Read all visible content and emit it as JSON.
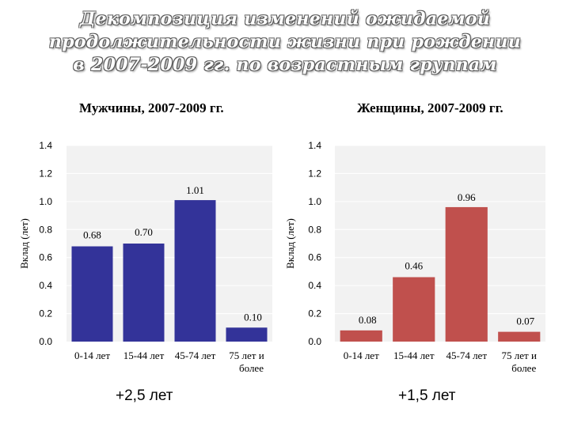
{
  "title": "Декомпозиция изменений ожидаемой продолжительности жизни при рождении в 2007-2009 гг. по возрастным группам",
  "colors": {
    "men": "#333399",
    "women": "#c0504d",
    "plot_bg": "#f2f2f2",
    "grid": "#ffffff"
  },
  "chart_data": [
    {
      "type": "bar",
      "title": "Мужчины, 2007-2009 гг.",
      "xlabel": "",
      "ylabel": "Вклад (лет)",
      "ylim": [
        0,
        1.4
      ],
      "yticks": [
        "0.0",
        "0.2",
        "0.4",
        "0.6",
        "0.8",
        "1.0",
        "1.2",
        "1.4"
      ],
      "categories": [
        "0-14 лет",
        "15-44 лет",
        "45-74 лет",
        "75 лет и более"
      ],
      "category_lines": [
        [
          "0-14 лет"
        ],
        [
          "15-44 лет"
        ],
        [
          "45-74 лет"
        ],
        [
          "75 лет и",
          "более"
        ]
      ],
      "values": [
        0.68,
        0.7,
        1.01,
        0.1
      ],
      "value_labels": [
        "0.68",
        "0.70",
        "1.01",
        "0.10"
      ],
      "color": "#333399",
      "note": "+2,5 лет"
    },
    {
      "type": "bar",
      "title": "Женщины, 2007-2009 гг.",
      "xlabel": "",
      "ylabel": "Вклад (лет)",
      "ylim": [
        0,
        1.4
      ],
      "yticks": [
        "0.0",
        "0.2",
        "0.4",
        "0.6",
        "0.8",
        "1.0",
        "1.2",
        "1.4"
      ],
      "categories": [
        "0-14 лет",
        "15-44 лет",
        "45-74 лет",
        "75 лет и более"
      ],
      "category_lines": [
        [
          "0-14 лет"
        ],
        [
          "15-44 лет"
        ],
        [
          "45-74 лет"
        ],
        [
          "75 лет и",
          "более"
        ]
      ],
      "values": [
        0.08,
        0.46,
        0.96,
        0.07
      ],
      "value_labels": [
        "0.08",
        "0.46",
        "0.96",
        "0.07"
      ],
      "color": "#c0504d",
      "note": "+1,5 лет"
    }
  ]
}
